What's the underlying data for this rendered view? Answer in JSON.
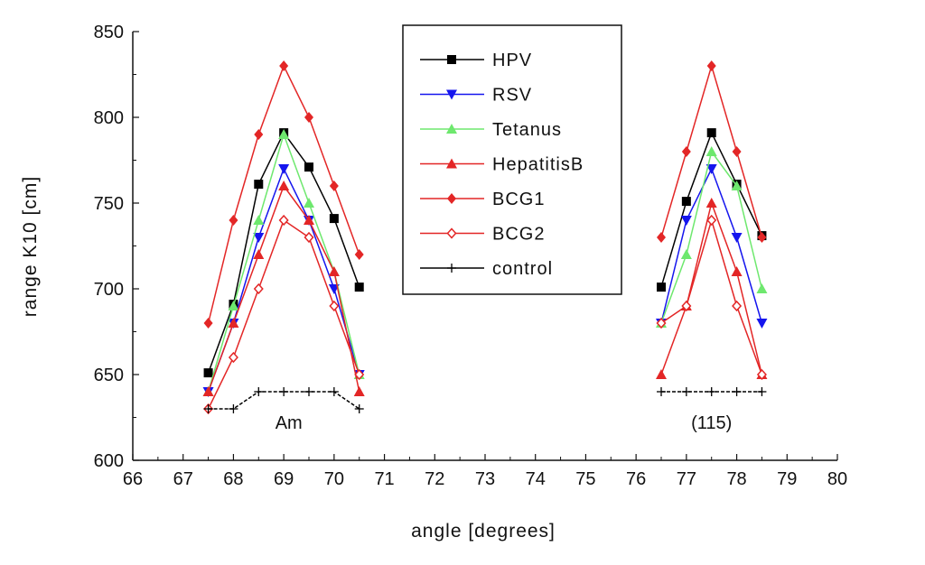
{
  "chart_data": {
    "type": "line",
    "title": "",
    "xlabel": "angle [degrees]",
    "ylabel": "range K10 [cm]",
    "xlim": [
      66,
      80
    ],
    "ylim": [
      600,
      850
    ],
    "xticks": [
      66,
      67,
      68,
      69,
      70,
      71,
      72,
      73,
      74,
      75,
      76,
      77,
      78,
      79,
      80
    ],
    "yticks": [
      600,
      650,
      700,
      750,
      800,
      850
    ],
    "grid": false,
    "legend_position": "top-center",
    "annotations": [
      {
        "text": "Am",
        "x": 69.1,
        "y": 622
      },
      {
        "text": "(115)",
        "x": 77.5,
        "y": 622
      }
    ],
    "series": [
      {
        "name": "HPV",
        "color": "#000000",
        "marker": "square",
        "groups": [
          {
            "x": [
              67.5,
              68,
              68.5,
              69,
              69.5,
              70,
              70.5
            ],
            "y": [
              651,
              691,
              761,
              791,
              771,
              741,
              701
            ]
          },
          {
            "x": [
              76.5,
              77,
              77.5,
              78,
              78.5
            ],
            "y": [
              701,
              751,
              791,
              761,
              731
            ]
          }
        ]
      },
      {
        "name": "RSV",
        "color": "#1515ee",
        "marker": "triangle-down",
        "groups": [
          {
            "x": [
              67.5,
              68,
              68.5,
              69,
              69.5,
              70,
              70.5
            ],
            "y": [
              640,
              680,
              730,
              770,
              740,
              700,
              650
            ]
          },
          {
            "x": [
              76.5,
              77,
              77.5,
              78,
              78.5
            ],
            "y": [
              680,
              740,
              770,
              730,
              680
            ]
          }
        ]
      },
      {
        "name": "Tetanus",
        "color": "#6ee86e",
        "marker": "triangle-up",
        "groups": [
          {
            "x": [
              67.5,
              68,
              68.5,
              69,
              69.5,
              70,
              70.5
            ],
            "y": [
              640,
              690,
              740,
              790,
              750,
              710,
              650
            ]
          },
          {
            "x": [
              76.5,
              77,
              77.5,
              78,
              78.5
            ],
            "y": [
              680,
              720,
              780,
              760,
              700
            ]
          }
        ]
      },
      {
        "name": "HepatitisB",
        "color": "#e32626",
        "marker": "triangle-up",
        "groups": [
          {
            "x": [
              67.5,
              68,
              68.5,
              69,
              69.5,
              70,
              70.5
            ],
            "y": [
              640,
              680,
              720,
              760,
              740,
              710,
              640
            ]
          },
          {
            "x": [
              76.5,
              77,
              77.5,
              78,
              78.5
            ],
            "y": [
              650,
              690,
              750,
              710,
              650
            ]
          }
        ]
      },
      {
        "name": "BCG1",
        "color": "#e32626",
        "marker": "diamond",
        "groups": [
          {
            "x": [
              67.5,
              68,
              68.5,
              69,
              69.5,
              70,
              70.5
            ],
            "y": [
              680,
              740,
              790,
              830,
              800,
              760,
              720
            ]
          },
          {
            "x": [
              76.5,
              77,
              77.5,
              78,
              78.5
            ],
            "y": [
              730,
              780,
              830,
              780,
              730
            ]
          }
        ]
      },
      {
        "name": "BCG2",
        "color": "#e32626",
        "marker": "diamond-open",
        "groups": [
          {
            "x": [
              67.5,
              68,
              68.5,
              69,
              69.5,
              70,
              70.5
            ],
            "y": [
              630,
              660,
              700,
              740,
              730,
              690,
              650
            ]
          },
          {
            "x": [
              76.5,
              77,
              77.5,
              78,
              78.5
            ],
            "y": [
              680,
              690,
              740,
              690,
              650
            ]
          }
        ]
      },
      {
        "name": "control",
        "color": "#000000",
        "marker": "plus",
        "groups": [
          {
            "x": [
              67.5,
              68,
              68.5,
              69,
              69.5,
              70,
              70.5
            ],
            "y": [
              630,
              630,
              640,
              640,
              640,
              640,
              630
            ]
          },
          {
            "x": [
              76.5,
              77,
              77.5,
              78,
              78.5
            ],
            "y": [
              640,
              640,
              640,
              640,
              640
            ]
          }
        ]
      }
    ]
  }
}
